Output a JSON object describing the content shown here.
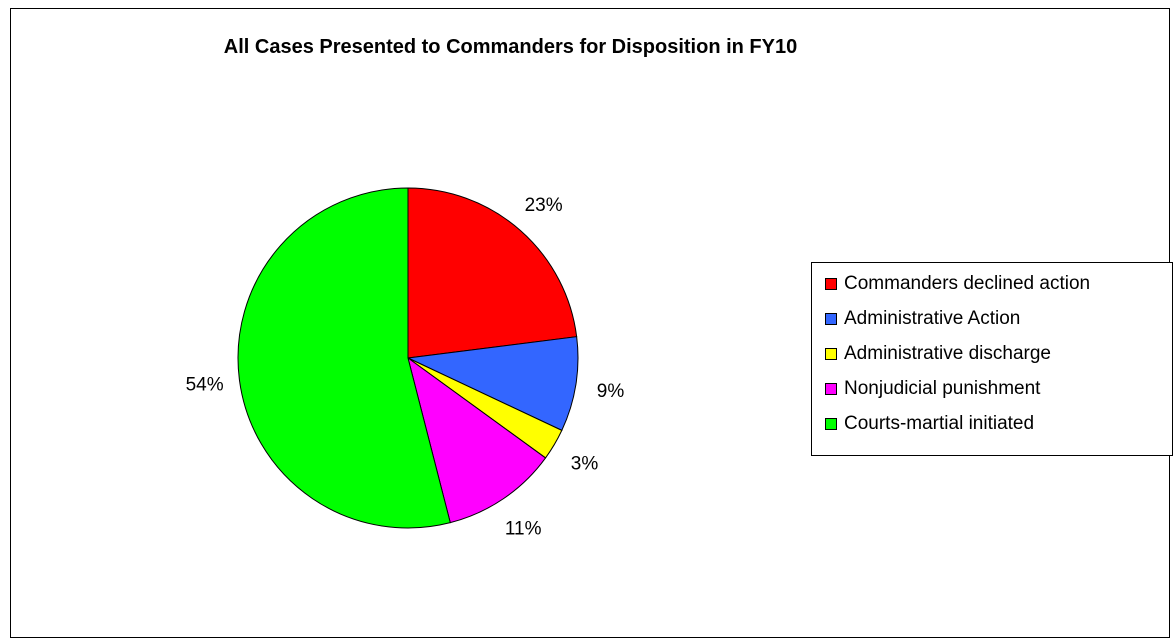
{
  "chart_data": {
    "type": "pie",
    "title": "All Cases Presented to Commanders for Disposition in FY10",
    "slices": [
      {
        "label": "Commanders declined action",
        "value": 23,
        "display": "23%",
        "color": "#FF0000"
      },
      {
        "label": "Administrative Action",
        "value": 9,
        "display": "9%",
        "color": "#3366FF"
      },
      {
        "label": "Administrative discharge",
        "value": 3,
        "display": "3%",
        "color": "#FFFF00"
      },
      {
        "label": "Nonjudicial punishment",
        "value": 11,
        "display": "11%",
        "color": "#FF00FF"
      },
      {
        "label": "Courts-martial initiated",
        "value": 54,
        "display": "54%",
        "color": "#00FF00"
      }
    ],
    "start_angle": "12 o'clock",
    "direction": "clockwise",
    "legend_position": "right"
  }
}
